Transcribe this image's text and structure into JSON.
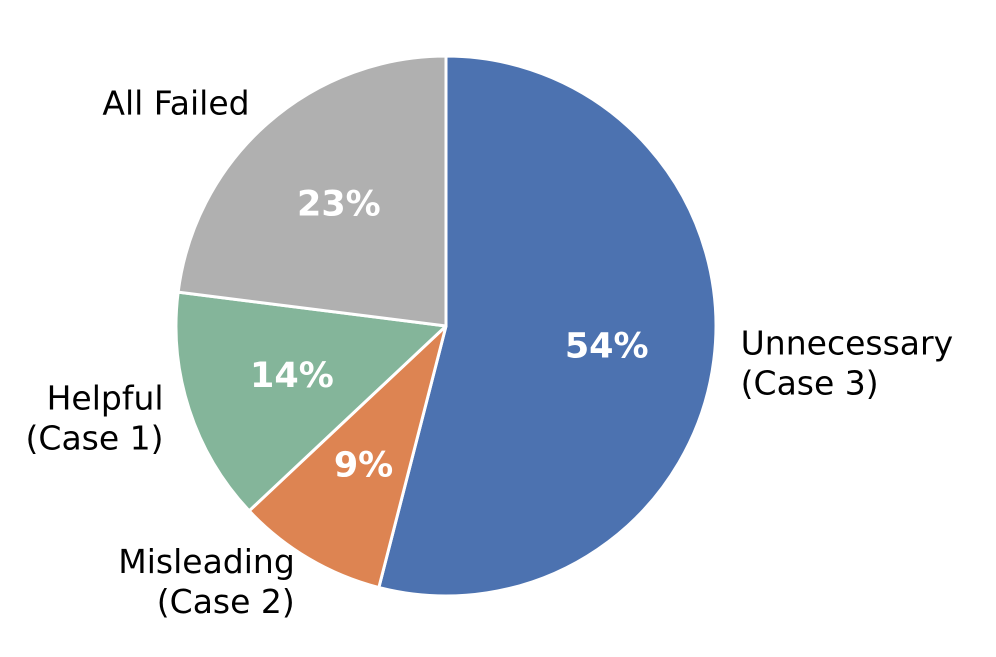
{
  "chart_data": {
    "type": "pie",
    "title": "",
    "start_angle_deg": 90,
    "direction": "clockwise",
    "slices": [
      {
        "name": "Unnecessary",
        "sub": "(Case 3)",
        "value": 54,
        "label": "54%",
        "color": "#4C72B0"
      },
      {
        "name": "Misleading",
        "sub": "(Case 2)",
        "value": 9,
        "label": "9%",
        "color": "#DD8452"
      },
      {
        "name": "Helpful",
        "sub": "(Case 1)",
        "value": 14,
        "label": "14%",
        "color": "#84B59A"
      },
      {
        "name": "All Failed",
        "sub": "",
        "value": 23,
        "label": "23%",
        "color": "#B0B0B0"
      }
    ]
  }
}
